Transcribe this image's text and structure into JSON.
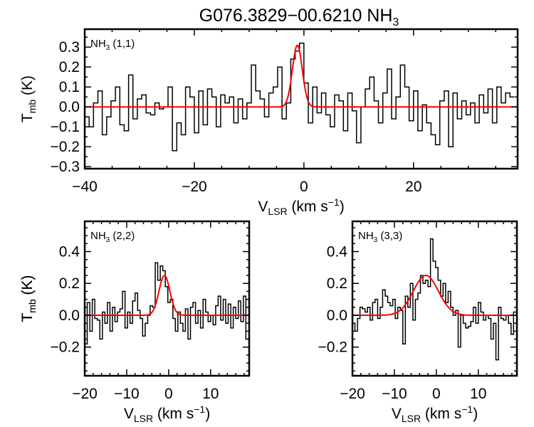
{
  "title": "G076.3829−00.6210 NH",
  "title_sub": "3",
  "colors": {
    "spectrum": "#000000",
    "fit": "#ff0000"
  },
  "chart_data": [
    {
      "type": "line",
      "panel": "NH3 (1,1)",
      "label_main": "NH",
      "label_sub": "3",
      "label_tail": " (1,1)",
      "xlabel": {
        "main": "V",
        "sub": "LSR",
        "rest": " (km s",
        "sup": "−1",
        "close": ")"
      },
      "ylabel": {
        "main": "T",
        "sub": "mb",
        "rest": " (K)"
      },
      "xlim": [
        -40,
        39
      ],
      "ylim": [
        -0.31,
        0.39
      ],
      "xticks": [
        -40,
        -20,
        0,
        20
      ],
      "xtick_labels": [
        "−40",
        "−20",
        "0",
        "20"
      ],
      "yticks": [
        -0.3,
        -0.2,
        -0.1,
        0.0,
        0.1,
        0.2,
        0.3
      ],
      "ytick_labels": [
        "−0.3",
        "−0.2",
        "−0.1",
        "0.0",
        "0.1",
        "0.2",
        "0.3"
      ],
      "x_start": -40,
      "x_step": 0.8,
      "values": [
        -0.05,
        -0.1,
        0.02,
        0.08,
        -0.14,
        -0.05,
        0.03,
        0.1,
        -0.09,
        -0.12,
        0.16,
        -0.06,
        0.04,
        0.06,
        -0.03,
        -0.04,
        0.02,
        -0.01,
        0.0,
        0.1,
        -0.22,
        -0.08,
        -0.14,
        0.1,
        0.05,
        -0.13,
        0.08,
        -0.09,
        0.09,
        0.05,
        -0.1,
        0.06,
        0.02,
        0.05,
        -0.08,
        0.04,
        -0.06,
        0.02,
        0.21,
        0.08,
        0.04,
        -0.05,
        0.07,
        0.1,
        0.2,
        -0.06,
        0.02,
        0.24,
        0.28,
        0.32,
        0.12,
        -0.08,
        0.1,
        -0.03,
        0.07,
        -0.04,
        -0.1,
        0.06,
        0.03,
        -0.12,
        0.07,
        -0.02,
        -0.18,
        0.0,
        0.09,
        0.15,
        0.03,
        -0.08,
        0.07,
        0.19,
        -0.06,
        0.05,
        0.21,
        0.1,
        -0.07,
        0.08,
        -0.12,
        0.01,
        -0.08,
        -0.14,
        -0.19,
        0.03,
        0.08,
        -0.2,
        0.07,
        -0.06,
        0.03,
        -0.04,
        0.02,
        -0.08,
        0.06,
        -0.03,
        0.09,
        -0.08,
        0.1,
        0.02,
        0.07,
        0.05
      ],
      "fit": {
        "amplitude": 0.31,
        "center": -1.2,
        "sigma": 0.9
      }
    },
    {
      "type": "line",
      "panel": "NH3 (2,2)",
      "label_main": "NH",
      "label_sub": "3",
      "label_tail": " (2,2)",
      "xlabel": {
        "main": "V",
        "sub": "LSR",
        "rest": " (km s",
        "sup": "−1",
        "close": ")"
      },
      "ylabel": {
        "main": "T",
        "sub": "mb",
        "rest": " (K)"
      },
      "xlim": [
        -20,
        19.2
      ],
      "ylim": [
        -0.38,
        0.59
      ],
      "xticks": [
        -20,
        -10,
        0,
        10
      ],
      "xtick_labels": [
        "−20",
        "−10",
        "0",
        "10"
      ],
      "yticks": [
        -0.2,
        0.0,
        0.2,
        0.4
      ],
      "ytick_labels": [
        "−0.2",
        "0.0",
        "0.2",
        "0.4"
      ],
      "x_start": -20,
      "x_step": 0.6,
      "values": [
        -0.18,
        0.08,
        -0.1,
        0.1,
        -0.02,
        -0.03,
        -0.15,
        0.02,
        -0.05,
        0.08,
        -0.1,
        0.05,
        -0.04,
        0.02,
        0.04,
        0.15,
        -0.08,
        0.02,
        -0.05,
        0.09,
        0.14,
        0.03,
        -0.02,
        -0.13,
        -0.05,
        0.0,
        0.06,
        0.05,
        0.33,
        0.22,
        0.31,
        0.28,
        0.18,
        0.08,
        0.1,
        -0.02,
        -0.1,
        0.02,
        -0.05,
        -0.1,
        0.04,
        -0.15,
        0.05,
        0.08,
        -0.05,
        0.03,
        -0.08,
        0.1,
        0.02,
        -0.04,
        0.0,
        -0.06,
        0.06,
        0.12,
        -0.03,
        0.1,
        -0.05,
        0.07,
        -0.08,
        0.05,
        -0.02,
        0.09,
        -0.04,
        0.12,
        -0.15
      ],
      "fit": {
        "amplitude": 0.25,
        "center": -1.0,
        "sigma": 1.3
      }
    },
    {
      "type": "line",
      "panel": "NH3 (3,3)",
      "label_main": "NH",
      "label_sub": "3",
      "label_tail": " (3,3)",
      "xlabel": {
        "main": "V",
        "sub": "LSR",
        "rest": " (km s",
        "sup": "−1",
        "close": ")"
      },
      "ylabel": {
        "main": "T",
        "sub": "mb",
        "rest": " (K)"
      },
      "xlim": [
        -20,
        19.2
      ],
      "ylim": [
        -0.38,
        0.59
      ],
      "xticks": [
        -20,
        -10,
        0,
        10
      ],
      "xtick_labels": [
        "−20",
        "−10",
        "0",
        "10"
      ],
      "yticks": [
        -0.2,
        0.0,
        0.2,
        0.4
      ],
      "ytick_labels": [
        "−0.2",
        "0.0",
        "0.2",
        "0.4"
      ],
      "x_start": -20,
      "x_step": 0.6,
      "values": [
        -0.05,
        -0.1,
        -0.02,
        0.05,
        0.04,
        0.02,
        0.05,
        -0.03,
        0.08,
        0.1,
        -0.02,
        0.05,
        0.16,
        0.12,
        0.08,
        0.06,
        0.1,
        -0.02,
        0.05,
        0.03,
        -0.18,
        0.12,
        0.05,
        0.2,
        -0.03,
        0.1,
        0.14,
        0.25,
        0.2,
        0.22,
        0.18,
        0.48,
        0.34,
        0.3,
        0.22,
        0.12,
        0.2,
        0.08,
        0.15,
        0.05,
        0.0,
        0.03,
        -0.2,
        0.0,
        -0.05,
        -0.08,
        -0.07,
        -0.04,
        0.05,
        -0.05,
        0.08,
        0.02,
        -0.03,
        0.0,
        -0.02,
        -0.15,
        -0.05,
        -0.28,
        0.05,
        -0.02,
        -0.03,
        0.0,
        -0.05,
        -0.12,
        0.02
      ],
      "fit": {
        "amplitude": 0.25,
        "center": -2.5,
        "sigma": 3.0
      }
    }
  ]
}
